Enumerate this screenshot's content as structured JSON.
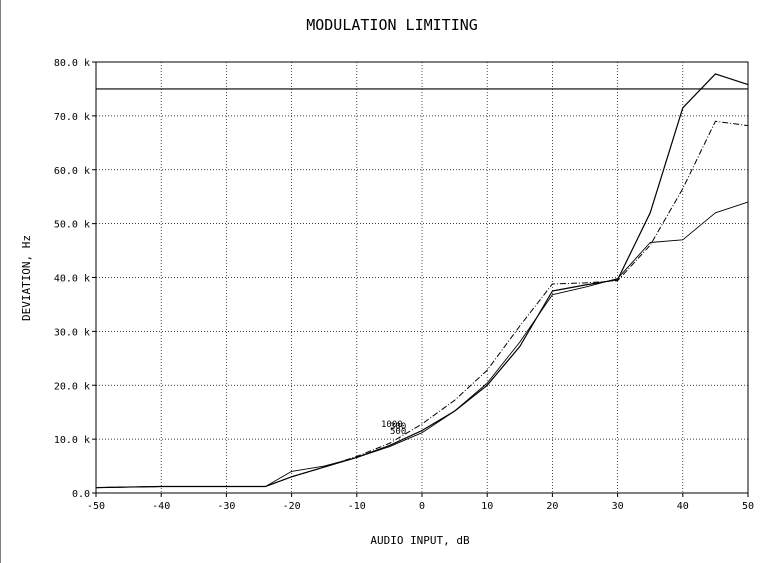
{
  "chart_data": {
    "type": "line",
    "title": "MODULATION LIMITING",
    "xlabel": "AUDIO INPUT, dB",
    "ylabel": "DEVIATION, Hz",
    "xlim": [
      -50,
      50
    ],
    "ylim": [
      0,
      80000
    ],
    "grid": true,
    "x_ticks": [
      -50,
      -40,
      -30,
      -20,
      -10,
      0,
      10,
      20,
      30,
      40,
      50
    ],
    "x_tick_labels": [
      "-50",
      "-40",
      "-30",
      "-20",
      "-10",
      "0",
      "10",
      "20",
      "30",
      "40",
      "50"
    ],
    "y_ticks": [
      0,
      10000,
      20000,
      30000,
      40000,
      50000,
      60000,
      70000,
      80000
    ],
    "y_tick_labels": [
      "0.0",
      "10.0 k",
      "20.0 k",
      "30.0 k",
      "40.0 k",
      "50.0 k",
      "60.0 k",
      "70.0 k",
      "80.0 k"
    ],
    "reference_line": {
      "y": 75000
    },
    "annotations": [
      "1000",
      "300",
      "500"
    ],
    "series": [
      {
        "style": "solid",
        "x": [
          -50,
          -40,
          -30,
          -24,
          -20,
          -15,
          -10,
          -5,
          0,
          5,
          10,
          15,
          20,
          25,
          30,
          35,
          40,
          45,
          50
        ],
        "y": [
          1000,
          1200,
          1200,
          1200,
          3000,
          4800,
          6600,
          8800,
          11600,
          15200,
          20000,
          27200,
          37500,
          38600,
          39600,
          52000,
          71500,
          77800,
          75800
        ]
      },
      {
        "style": "dashdot",
        "x": [
          -50,
          -40,
          -30,
          -24,
          -20,
          -15,
          -10,
          -5,
          0,
          5,
          10,
          15,
          20,
          25,
          30,
          35,
          40,
          45,
          50
        ],
        "y": [
          1000,
          1200,
          1200,
          1200,
          3000,
          4800,
          6800,
          9200,
          12800,
          17200,
          22800,
          31000,
          38800,
          39000,
          39400,
          46000,
          56500,
          69000,
          68200
        ]
      },
      {
        "style": "thin",
        "x": [
          -50,
          -40,
          -30,
          -24,
          -20,
          -15,
          -10,
          -5,
          0,
          5,
          10,
          15,
          20,
          25,
          30,
          35,
          40,
          45,
          50
        ],
        "y": [
          1000,
          1200,
          1200,
          1200,
          4000,
          5000,
          6600,
          8600,
          11200,
          15200,
          20400,
          28000,
          36800,
          38200,
          39800,
          46500,
          47000,
          52000,
          54000
        ]
      }
    ]
  }
}
